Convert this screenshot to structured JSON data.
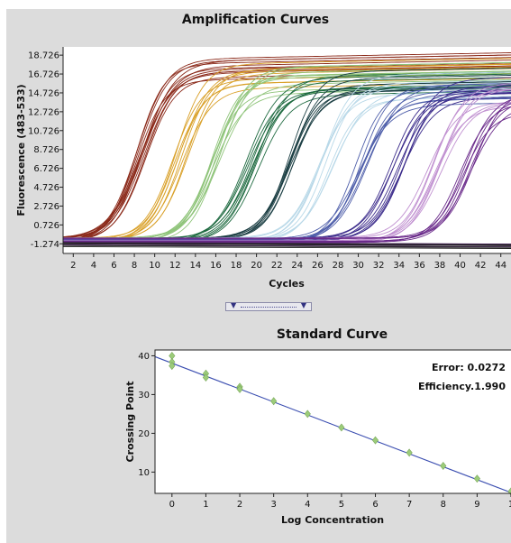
{
  "colors": {
    "panel_bg": "#dcdcdc",
    "plot_bg": "#ffffff",
    "fit_line": "#3a4db0",
    "std_points": "#9ccc7a",
    "dilution_palette": [
      "#8b2a1a",
      "#d9a028",
      "#8fc47a",
      "#1e6a40",
      "#1c3f44",
      "#b8d8e8",
      "#4f5faa",
      "#3a2a8a",
      "#c090d0",
      "#6a2a8a"
    ]
  },
  "splitter": {
    "icon_left": "triangle-down-icon",
    "icon_right": "triangle-down-icon"
  },
  "chart_data": [
    {
      "type": "line",
      "title": "Amplification Curves",
      "xlabel": "Cycles",
      "ylabel": "Fluorescence (483-533)",
      "xlim": [
        1,
        45
      ],
      "ylim": [
        -2.3,
        19.6
      ],
      "x_ticks": [
        2,
        4,
        6,
        8,
        10,
        12,
        14,
        16,
        18,
        20,
        22,
        24,
        26,
        28,
        30,
        32,
        34,
        36,
        38,
        40,
        42,
        44
      ],
      "y_ticks": [
        "18.726",
        "16.726",
        "14.726",
        "12.726",
        "10.726",
        "8.726",
        "6.726",
        "4.726",
        "2.726",
        "0.726",
        "-1.274"
      ],
      "grid": false,
      "legend": "none",
      "baseline": -0.9,
      "series_groups": [
        {
          "color": "#8b2a1a",
          "midpoint": 8.8,
          "plateau": 16.6,
          "count": 12
        },
        {
          "color": "#d9a028",
          "midpoint": 12.5,
          "plateau": 15.8,
          "count": 9
        },
        {
          "color": "#8fc47a",
          "midpoint": 16.2,
          "plateau": 15.2,
          "count": 9
        },
        {
          "color": "#1e6a40",
          "midpoint": 19.7,
          "plateau": 14.8,
          "count": 9
        },
        {
          "color": "#1c3f44",
          "midpoint": 23.3,
          "plateau": 14.5,
          "count": 8
        },
        {
          "color": "#b8d8e8",
          "midpoint": 26.8,
          "plateau": 14.3,
          "count": 8
        },
        {
          "color": "#4f5faa",
          "midpoint": 30.3,
          "plateau": 14.0,
          "count": 8
        },
        {
          "color": "#3a2a8a",
          "midpoint": 33.8,
          "plateau": 13.8,
          "count": 8
        },
        {
          "color": "#c090d0",
          "midpoint": 37.5,
          "plateau": 13.5,
          "count": 8
        },
        {
          "color": "#6a2a8a",
          "midpoint": 40.8,
          "plateau": 13.2,
          "count": 7
        }
      ]
    },
    {
      "type": "scatter",
      "title": "Standard Curve",
      "xlabel": "Log Concentration",
      "ylabel": "Crossing Point",
      "xlim": [
        -0.5,
        10
      ],
      "ylim": [
        4.5,
        41.5
      ],
      "x_ticks": [
        "0",
        "1",
        "2",
        "3",
        "4",
        "5",
        "6",
        "7",
        "8",
        "9",
        "1"
      ],
      "y_ticks": [
        40,
        30,
        20,
        10
      ],
      "grid": false,
      "legend": "none",
      "annotations": [
        "Error: 0.0272",
        "Efficiency.1.990"
      ],
      "fit_line": {
        "slope": -3.34,
        "intercept": 38.1
      },
      "points": [
        {
          "x": 0,
          "y": 40.0
        },
        {
          "x": 0,
          "y": 38.4
        },
        {
          "x": 0,
          "y": 37.4
        },
        {
          "x": 1,
          "y": 35.4
        },
        {
          "x": 1,
          "y": 34.4
        },
        {
          "x": 2,
          "y": 32.0
        },
        {
          "x": 2,
          "y": 31.4
        },
        {
          "x": 3,
          "y": 28.3
        },
        {
          "x": 4,
          "y": 25.0
        },
        {
          "x": 5,
          "y": 21.5
        },
        {
          "x": 6,
          "y": 18.2
        },
        {
          "x": 7,
          "y": 15.0
        },
        {
          "x": 8,
          "y": 11.6
        },
        {
          "x": 9,
          "y": 8.3
        },
        {
          "x": 10,
          "y": 5.0
        }
      ]
    }
  ]
}
